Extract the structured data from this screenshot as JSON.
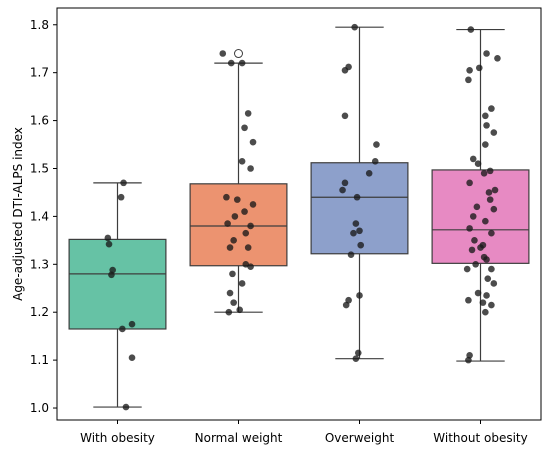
{
  "chart_data": {
    "type": "box",
    "ylabel": "Age-adjusted DTI-ALPS index",
    "xlabel": "",
    "title": "",
    "ylim": [
      0.975,
      1.835
    ],
    "yticks": [
      "1.0",
      "1.1",
      "1.2",
      "1.3",
      "1.4",
      "1.5",
      "1.6",
      "1.7",
      "1.8"
    ],
    "grid": false,
    "colors": {
      "box_edge": "#3d3d3d",
      "point": "#1a1a1a",
      "axis": "#000000"
    },
    "categories": [
      "With obesity",
      "Normal weight",
      "Overweight",
      "Without obesity"
    ],
    "boxes": [
      {
        "category": "With obesity",
        "color": "#66c2a5",
        "whisker_low": 1.002,
        "q1": 1.165,
        "median": 1.28,
        "q3": 1.352,
        "whisker_high": 1.47,
        "outliers": [],
        "points": [
          {
            "y": 1.47,
            "dx": 0.05
          },
          {
            "y": 1.44,
            "dx": 0.03
          },
          {
            "y": 1.355,
            "dx": -0.08
          },
          {
            "y": 1.342,
            "dx": -0.07
          },
          {
            "y": 1.288,
            "dx": -0.04
          },
          {
            "y": 1.278,
            "dx": -0.05
          },
          {
            "y": 1.175,
            "dx": 0.12
          },
          {
            "y": 1.165,
            "dx": 0.04
          },
          {
            "y": 1.105,
            "dx": 0.12
          },
          {
            "y": 1.002,
            "dx": 0.07
          }
        ]
      },
      {
        "category": "Normal weight",
        "color": "#ec9370",
        "whisker_low": 1.2,
        "q1": 1.297,
        "median": 1.38,
        "q3": 1.468,
        "whisker_high": 1.72,
        "outliers": [
          1.74
        ],
        "points": [
          {
            "y": 1.74,
            "dx": -0.13
          },
          {
            "y": 1.72,
            "dx": -0.06
          },
          {
            "y": 1.72,
            "dx": 0.03
          },
          {
            "y": 1.615,
            "dx": 0.08
          },
          {
            "y": 1.585,
            "dx": 0.05
          },
          {
            "y": 1.555,
            "dx": 0.12
          },
          {
            "y": 1.515,
            "dx": 0.03
          },
          {
            "y": 1.5,
            "dx": 0.1
          },
          {
            "y": 1.44,
            "dx": -0.1
          },
          {
            "y": 1.435,
            "dx": -0.01
          },
          {
            "y": 1.425,
            "dx": 0.12
          },
          {
            "y": 1.41,
            "dx": 0.05
          },
          {
            "y": 1.4,
            "dx": -0.03
          },
          {
            "y": 1.385,
            "dx": -0.09
          },
          {
            "y": 1.38,
            "dx": 0.1
          },
          {
            "y": 1.365,
            "dx": 0.06
          },
          {
            "y": 1.35,
            "dx": -0.04
          },
          {
            "y": 1.335,
            "dx": -0.07
          },
          {
            "y": 1.335,
            "dx": 0.08
          },
          {
            "y": 1.3,
            "dx": 0.06
          },
          {
            "y": 1.295,
            "dx": 0.1
          },
          {
            "y": 1.28,
            "dx": -0.05
          },
          {
            "y": 1.26,
            "dx": 0.03
          },
          {
            "y": 1.24,
            "dx": -0.07
          },
          {
            "y": 1.22,
            "dx": -0.04
          },
          {
            "y": 1.2,
            "dx": -0.08
          },
          {
            "y": 1.205,
            "dx": 0.01
          }
        ]
      },
      {
        "category": "Overweight",
        "color": "#8da0cb",
        "whisker_low": 1.103,
        "q1": 1.322,
        "median": 1.44,
        "q3": 1.512,
        "whisker_high": 1.795,
        "outliers": [],
        "points": [
          {
            "y": 1.795,
            "dx": -0.04
          },
          {
            "y": 1.712,
            "dx": -0.09
          },
          {
            "y": 1.705,
            "dx": -0.12
          },
          {
            "y": 1.61,
            "dx": -0.12
          },
          {
            "y": 1.55,
            "dx": 0.14
          },
          {
            "y": 1.515,
            "dx": 0.13
          },
          {
            "y": 1.49,
            "dx": 0.08
          },
          {
            "y": 1.47,
            "dx": -0.12
          },
          {
            "y": 1.455,
            "dx": -0.14
          },
          {
            "y": 1.44,
            "dx": -0.02
          },
          {
            "y": 1.385,
            "dx": -0.03
          },
          {
            "y": 1.37,
            "dx": 0.0
          },
          {
            "y": 1.365,
            "dx": -0.05
          },
          {
            "y": 1.34,
            "dx": 0.01
          },
          {
            "y": 1.32,
            "dx": -0.07
          },
          {
            "y": 1.235,
            "dx": 0.0
          },
          {
            "y": 1.225,
            "dx": -0.09
          },
          {
            "y": 1.215,
            "dx": -0.11
          },
          {
            "y": 1.115,
            "dx": -0.01
          },
          {
            "y": 1.103,
            "dx": -0.03
          }
        ]
      },
      {
        "category": "Without obesity",
        "color": "#e78ac3",
        "whisker_low": 1.098,
        "q1": 1.302,
        "median": 1.372,
        "q3": 1.497,
        "whisker_high": 1.79,
        "outliers": [],
        "points": [
          {
            "y": 1.79,
            "dx": -0.08
          },
          {
            "y": 1.74,
            "dx": 0.05
          },
          {
            "y": 1.73,
            "dx": 0.14
          },
          {
            "y": 1.71,
            "dx": -0.01
          },
          {
            "y": 1.705,
            "dx": -0.09
          },
          {
            "y": 1.685,
            "dx": -0.1
          },
          {
            "y": 1.625,
            "dx": 0.09
          },
          {
            "y": 1.61,
            "dx": 0.04
          },
          {
            "y": 1.59,
            "dx": 0.05
          },
          {
            "y": 1.575,
            "dx": 0.11
          },
          {
            "y": 1.55,
            "dx": 0.04
          },
          {
            "y": 1.52,
            "dx": -0.06
          },
          {
            "y": 1.51,
            "dx": -0.02
          },
          {
            "y": 1.495,
            "dx": 0.08
          },
          {
            "y": 1.49,
            "dx": 0.03
          },
          {
            "y": 1.47,
            "dx": -0.09
          },
          {
            "y": 1.455,
            "dx": 0.12
          },
          {
            "y": 1.45,
            "dx": 0.07
          },
          {
            "y": 1.435,
            "dx": 0.08
          },
          {
            "y": 1.42,
            "dx": -0.03
          },
          {
            "y": 1.415,
            "dx": 0.11
          },
          {
            "y": 1.4,
            "dx": -0.06
          },
          {
            "y": 1.39,
            "dx": 0.04
          },
          {
            "y": 1.375,
            "dx": -0.09
          },
          {
            "y": 1.365,
            "dx": 0.09
          },
          {
            "y": 1.35,
            "dx": -0.05
          },
          {
            "y": 1.34,
            "dx": 0.02
          },
          {
            "y": 1.335,
            "dx": 0.0
          },
          {
            "y": 1.33,
            "dx": -0.07
          },
          {
            "y": 1.315,
            "dx": 0.03
          },
          {
            "y": 1.31,
            "dx": 0.05
          },
          {
            "y": 1.3,
            "dx": -0.04
          },
          {
            "y": 1.29,
            "dx": 0.09
          },
          {
            "y": 1.29,
            "dx": -0.11
          },
          {
            "y": 1.27,
            "dx": 0.06
          },
          {
            "y": 1.26,
            "dx": 0.11
          },
          {
            "y": 1.24,
            "dx": -0.02
          },
          {
            "y": 1.235,
            "dx": 0.05
          },
          {
            "y": 1.225,
            "dx": -0.1
          },
          {
            "y": 1.22,
            "dx": 0.02
          },
          {
            "y": 1.215,
            "dx": 0.09
          },
          {
            "y": 1.2,
            "dx": 0.04
          },
          {
            "y": 1.11,
            "dx": -0.09
          },
          {
            "y": 1.1,
            "dx": -0.1
          }
        ]
      }
    ]
  }
}
